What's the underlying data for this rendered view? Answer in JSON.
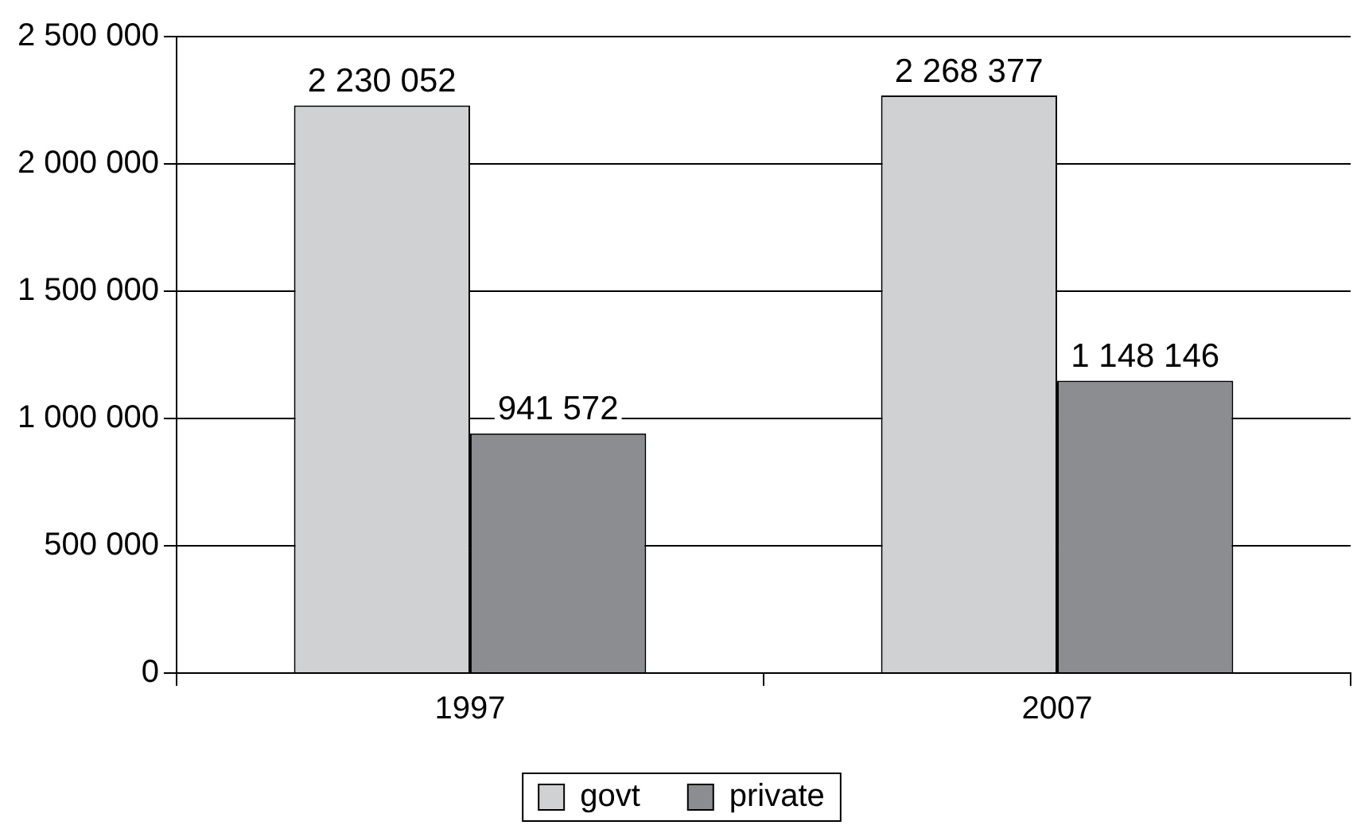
{
  "chart_data": {
    "type": "bar",
    "categories": [
      "1997",
      "2007"
    ],
    "series": [
      {
        "name": "govt",
        "color": "#d0d1d3",
        "values": [
          2230052,
          2268377
        ],
        "value_labels": [
          "2 230 052",
          "2 268 377"
        ]
      },
      {
        "name": "private",
        "color": "#8c8d90",
        "values": [
          941572,
          1148146
        ],
        "value_labels": [
          "941 572",
          "1 148 146"
        ]
      }
    ],
    "ylim": [
      0,
      2500000
    ],
    "yticks": [
      {
        "value": 0,
        "label": "0"
      },
      {
        "value": 500000,
        "label": "500 000"
      },
      {
        "value": 1000000,
        "label": "1 000 000"
      },
      {
        "value": 1500000,
        "label": "1 500 000"
      },
      {
        "value": 2000000,
        "label": "2 000 000"
      },
      {
        "value": 2500000,
        "label": "2 500 000"
      }
    ],
    "grid": "y",
    "legend": "bottom"
  }
}
